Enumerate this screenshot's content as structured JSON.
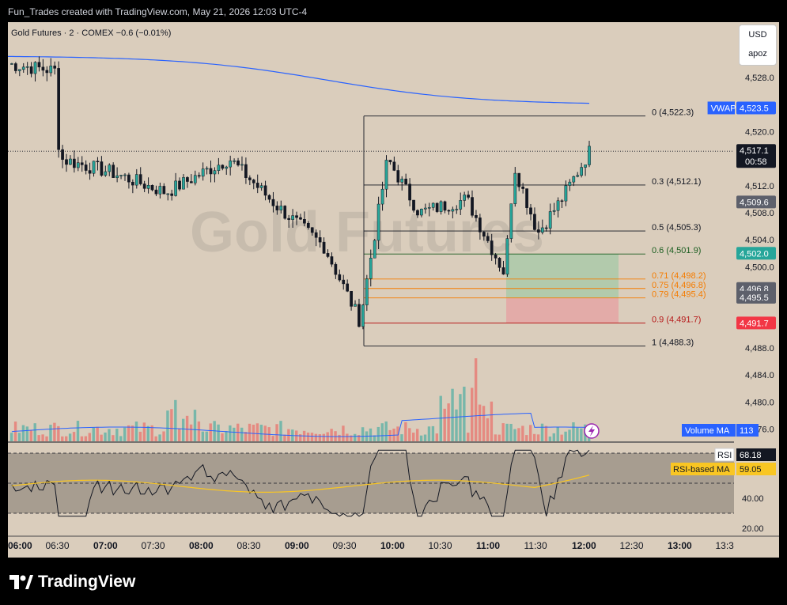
{
  "header": {
    "created_by": "Fun_Trades created with TradingView.com, May 21, 2026 12:03 UTC-4"
  },
  "legend": {
    "symbol": "Gold Futures · 2 · COMEX",
    "change": "−0.6 (−0.01%)"
  },
  "watermark": "Gold Futures",
  "currency_box": {
    "currency": "USD",
    "unit": "apoz"
  },
  "price_axis": {
    "ticks": [
      "4,528.0",
      "4,524.0",
      "4,520.0",
      "4,516.0",
      "4,512.0",
      "4,508.0",
      "4,504.0",
      "4,500.0",
      "4,496.0",
      "4,492.0",
      "4,488.0",
      "4,484.0",
      "4,480.0",
      "4,476.0"
    ],
    "tick_values": [
      4528,
      4524,
      4520,
      4516,
      4512,
      4508,
      4504,
      4500,
      4496,
      4492,
      4488,
      4484,
      4480,
      4476
    ],
    "last_price": "4,517.1",
    "countdown": "00:58",
    "price_tags": [
      {
        "name": "VWAP",
        "value": "4,523.5",
        "color": "#2962ff"
      },
      {
        "name": "",
        "value": "4,509.6",
        "color": "#5d606b"
      },
      {
        "name": "",
        "value": "4,502.0",
        "color": "#26a69a"
      },
      {
        "name": "",
        "value": "4,496.8",
        "color": "#5d606b"
      },
      {
        "name": "",
        "value": "4,495.5",
        "color": "#5d606b"
      },
      {
        "name": "",
        "value": "4,491.7",
        "color": "#f23645"
      }
    ]
  },
  "fib_levels": [
    {
      "label": "0 (4,522.3)",
      "price": 4522.3,
      "color": "#131722"
    },
    {
      "label": "0.3 (4,512.1)",
      "price": 4512.1,
      "color": "#131722"
    },
    {
      "label": "0.5 (4,505.3)",
      "price": 4505.3,
      "color": "#131722"
    },
    {
      "label": "0.6 (4,501.9)",
      "price": 4501.9,
      "color": "#1b5e20"
    },
    {
      "label": "0.71 (4,498.2)",
      "price": 4498.2,
      "color": "#f57c00"
    },
    {
      "label": "0.75 (4,496.8)",
      "price": 4496.8,
      "color": "#f57c00"
    },
    {
      "label": "0.79 (4,495.4)",
      "price": 4495.4,
      "color": "#f57c00"
    },
    {
      "label": "0.9 (4,491.7)",
      "price": 4491.7,
      "color": "#b71c1c"
    },
    {
      "label": "1 (4,488.3)",
      "price": 4488.3,
      "color": "#131722"
    }
  ],
  "position_tool": {
    "entry": 4495.4,
    "target": 4501.9,
    "stop": 4491.7
  },
  "volume_legend": {
    "label": "Volume MA",
    "value": "113"
  },
  "rsi": {
    "label": "RSI",
    "value": "68.18",
    "ma_label": "RSI-based MA",
    "ma_value": "59.05",
    "ticks": [
      "40.00",
      "20.00"
    ],
    "tick_values": [
      40,
      20
    ]
  },
  "time_axis": {
    "labels": [
      "06:00",
      "06:30",
      "07:00",
      "07:30",
      "08:00",
      "08:30",
      "09:00",
      "09:30",
      "10:00",
      "10:30",
      "11:00",
      "11:30",
      "12:00",
      "12:30",
      "13:00",
      "13:3"
    ],
    "bold": [
      true,
      false,
      true,
      false,
      true,
      false,
      true,
      false,
      true,
      false,
      true,
      false,
      true,
      false,
      true,
      false
    ]
  },
  "footer": {
    "brand": "TradingView"
  },
  "colors": {
    "up": "#26a69a",
    "down": "#ef5350",
    "vwap": "#2962ff",
    "background": "#dacdbc"
  }
}
